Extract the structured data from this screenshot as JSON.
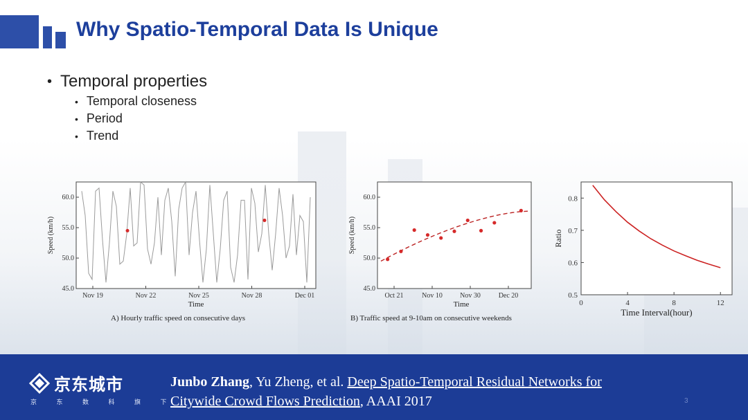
{
  "slide": {
    "title": "Why Spatio-Temporal Data Is Unique",
    "bullet": "Temporal properties",
    "sub_bullets": [
      "Temporal closeness",
      "Period",
      "Trend"
    ],
    "page_number": "3"
  },
  "footer": {
    "brand": "京东城市",
    "brand_sub": "京 东 数 科 旗 下",
    "citation": {
      "lead_author": "Junbo Zhang",
      "other_authors": ", Yu Zheng, et al. ",
      "paper_title_line1": "Deep Spatio-Temporal Residual Networks for",
      "paper_title_line2": "Citywide Crowd Flows Prediction",
      "venue": ", AAAI 2017"
    }
  },
  "colors": {
    "title": "#1d3f9c",
    "footer": "#1c3c96",
    "marker": "#d62a2a",
    "line_gray": "#9a9a9a"
  },
  "chart_data": [
    {
      "type": "line",
      "caption": "A) Hourly traffic speed on consecutive days",
      "xlabel": "Time",
      "ylabel": "Speed (km/h)",
      "x_ticks": [
        "Nov 19",
        "Nov 22",
        "Nov 25",
        "Nov 28",
        "Dec 01"
      ],
      "y_ticks": [
        "45.0",
        "50.0",
        "55.0",
        "60.0"
      ],
      "ylim": [
        45,
        62.5
      ],
      "series": [
        {
          "values": [
            61,
            57,
            47.5,
            46.5,
            61,
            61.5,
            53,
            46,
            52.5,
            61,
            58.5,
            49,
            49.5,
            54,
            61.5,
            52,
            52.5,
            62.5,
            62,
            51.5,
            49,
            52.5,
            60,
            50.5,
            59.5,
            61.5,
            56,
            47,
            58,
            61.5,
            62.5,
            50.5,
            57.5,
            61,
            53,
            46,
            51.5,
            62,
            54,
            46,
            51.5,
            59.5,
            61,
            48.5,
            46,
            50.5,
            59.5,
            59.5,
            46.5,
            61.5,
            59,
            51,
            54,
            62,
            54,
            48,
            54,
            61.5,
            57,
            50,
            52,
            60.5,
            50.5,
            57,
            56,
            46,
            60
          ]
        }
      ],
      "markers": [
        {
          "x_frac": 0.214,
          "y": 54.5
        },
        {
          "x_frac": 0.786,
          "y": 56.2
        }
      ]
    },
    {
      "type": "scatter",
      "caption": "B) Traffic speed at 9-10am on consecutive weekends",
      "xlabel": "Time",
      "ylabel": "Speed (km/h)",
      "x_ticks": [
        "Oct 21",
        "Nov 10",
        "Nov 30",
        "Dec 20"
      ],
      "y_ticks": [
        "45.0",
        "50.0",
        "55.0",
        "60.0"
      ],
      "ylim": [
        45,
        62.5
      ],
      "points": [
        {
          "x": 1,
          "y": 49.8
        },
        {
          "x": 3,
          "y": 51.1
        },
        {
          "x": 5,
          "y": 54.6
        },
        {
          "x": 7,
          "y": 53.8
        },
        {
          "x": 9,
          "y": 53.3
        },
        {
          "x": 11,
          "y": 54.4
        },
        {
          "x": 13,
          "y": 56.2
        },
        {
          "x": 15,
          "y": 54.5
        },
        {
          "x": 17,
          "y": 55.8
        },
        {
          "x": 21,
          "y": 57.8
        }
      ],
      "trend": {
        "x": [
          0,
          22
        ],
        "y": [
          49.5,
          57.7
        ]
      }
    },
    {
      "type": "line",
      "xlabel": "Time Interval(hour)",
      "ylabel": "Ratio",
      "x_ticks": [
        "0",
        "4",
        "8",
        "12"
      ],
      "y_ticks": [
        "0.5",
        "0.6",
        "0.7",
        "0.8"
      ],
      "xlim": [
        0,
        13
      ],
      "ylim": [
        0.5,
        0.85
      ],
      "series": [
        {
          "x": [
            1,
            2,
            3,
            4,
            5,
            6,
            7,
            8,
            9,
            10,
            11,
            12
          ],
          "values": [
            0.84,
            0.795,
            0.758,
            0.725,
            0.698,
            0.674,
            0.654,
            0.636,
            0.621,
            0.607,
            0.595,
            0.584
          ]
        }
      ]
    }
  ]
}
